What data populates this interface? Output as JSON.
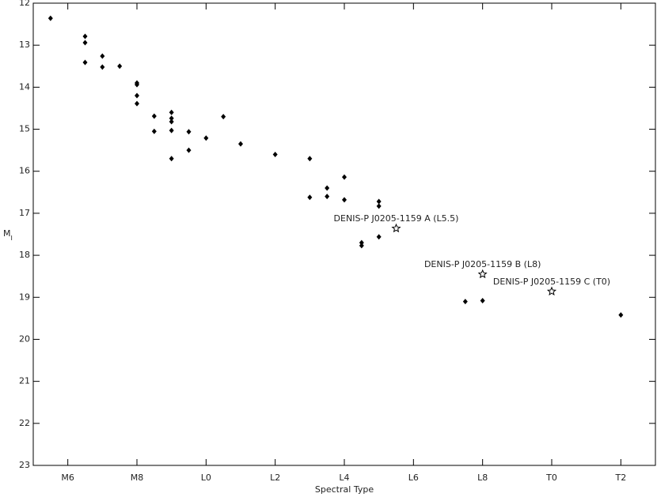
{
  "chart_data": {
    "type": "scatter",
    "xlabel": "Spectral Type",
    "ylabel": "M",
    "ylabel_sub": "I",
    "xlim": [
      5,
      23
    ],
    "ylim": [
      12,
      23
    ],
    "y_inverted": true,
    "xticks": [
      {
        "value": 6,
        "label": "M6"
      },
      {
        "value": 8,
        "label": "M8"
      },
      {
        "value": 10,
        "label": "L0"
      },
      {
        "value": 12,
        "label": "L2"
      },
      {
        "value": 14,
        "label": "L4"
      },
      {
        "value": 16,
        "label": "L6"
      },
      {
        "value": 18,
        "label": "L8"
      },
      {
        "value": 20,
        "label": "T0"
      },
      {
        "value": 22,
        "label": "T2"
      }
    ],
    "yticks": [
      12,
      13,
      14,
      15,
      16,
      17,
      18,
      19,
      20,
      21,
      22,
      23
    ],
    "series": [
      {
        "marker": "diamond",
        "color": "#000000",
        "x": [
          5.5,
          6.5,
          6.5,
          6.5,
          7,
          7,
          7.5,
          8,
          8,
          8,
          8,
          8.5,
          8.5,
          9,
          9,
          9,
          9,
          9,
          9.5,
          9.5,
          10,
          10.5,
          11,
          12,
          13,
          13,
          13.5,
          13.5,
          14,
          14,
          14.5,
          14.5,
          15,
          15,
          15,
          17.5,
          18,
          22
        ],
        "y": [
          12.36,
          12.79,
          12.94,
          13.41,
          13.26,
          13.52,
          13.5,
          13.9,
          13.94,
          14.2,
          14.39,
          14.69,
          15.05,
          14.6,
          14.74,
          14.82,
          15.03,
          15.7,
          15.06,
          15.5,
          15.21,
          14.7,
          15.35,
          15.6,
          15.7,
          16.62,
          16.4,
          16.6,
          16.14,
          16.68,
          17.7,
          17.77,
          16.72,
          16.83,
          17.56,
          19.1,
          19.08,
          19.42
        ]
      },
      {
        "marker": "star",
        "color": "#000000",
        "x": [
          15.5,
          18,
          20
        ],
        "y": [
          17.36,
          18.45,
          18.86
        ],
        "labels": [
          "DENIS-P J0205-1159 A (L5.5)",
          "DENIS-P J0205-1159 B (L8)",
          "DENIS-P J0205-1159 C (T0)"
        ]
      }
    ]
  }
}
